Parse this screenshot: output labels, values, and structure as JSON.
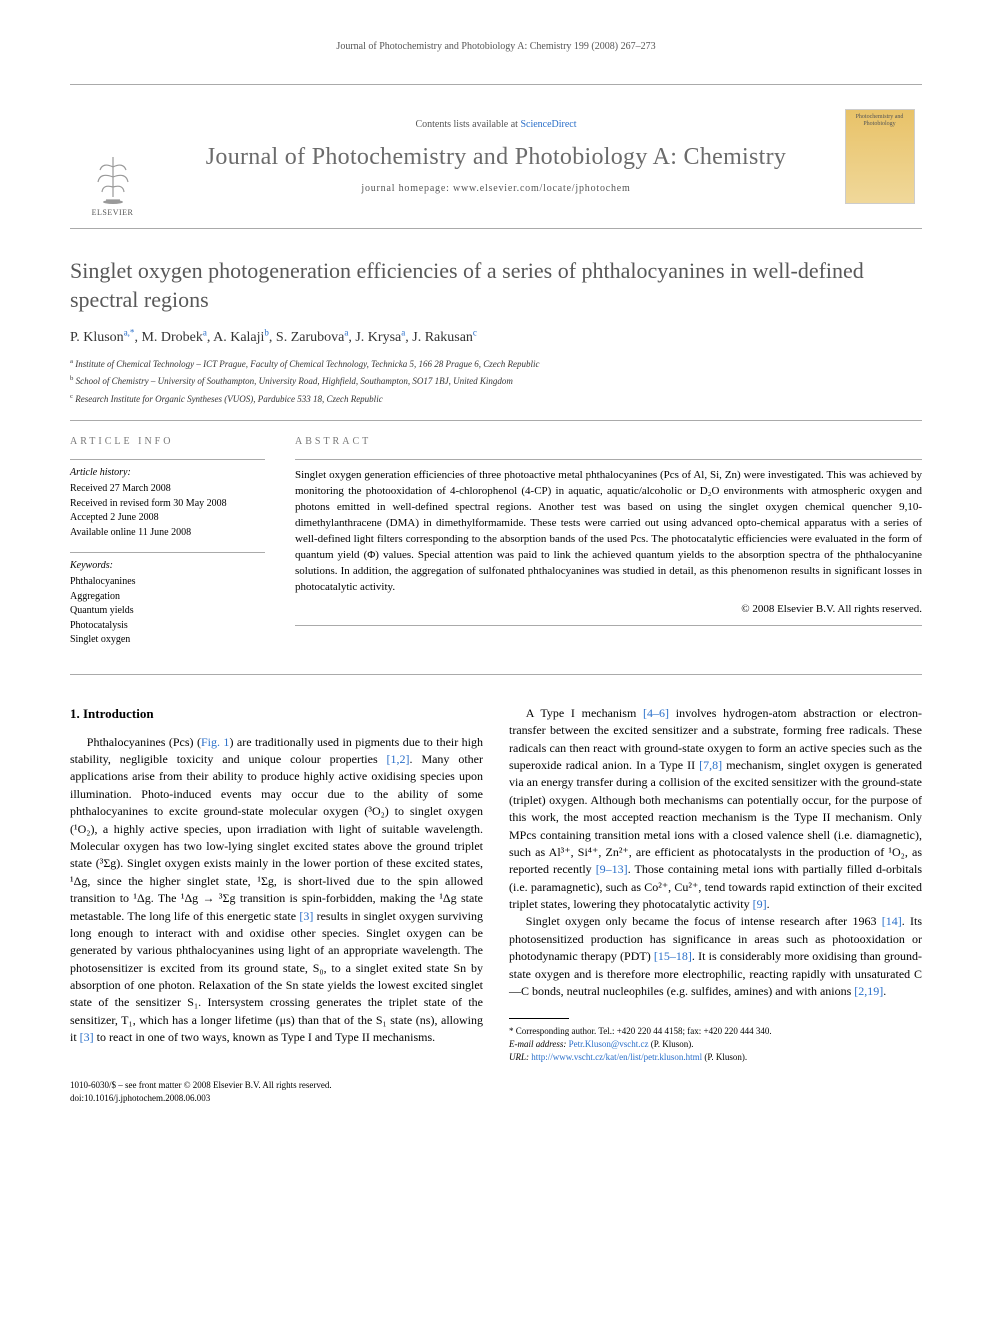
{
  "running_head": "Journal of Photochemistry and Photobiology A: Chemistry 199 (2008) 267–273",
  "masthead": {
    "contents_prefix": "Contents lists available at ",
    "contents_link": "ScienceDirect",
    "journal_title": "Journal of Photochemistry and Photobiology A: Chemistry",
    "homepage_prefix": "journal homepage: ",
    "homepage": "www.elsevier.com/locate/jphotochem",
    "publisher": "ELSEVIER",
    "cover_text": "Photochemistry and Photobiology"
  },
  "article": {
    "title": "Singlet oxygen photogeneration efficiencies of a series of phthalocyanines in well-defined spectral regions",
    "authors_html": "P. Kluson<sup>a,*</sup>, M. Drobek<sup>a</sup>, A. Kalaji<sup>b</sup>, S. Zarubova<sup>a</sup>, J. Krysa<sup>a</sup>, J. Rakusan<sup>c</sup>",
    "affiliations": [
      "a Institute of Chemical Technology – ICT Prague, Faculty of Chemical Technology, Technicka 5, 166 28 Prague 6, Czech Republic",
      "b School of Chemistry – University of Southampton, University Road, Highfield, Southampton, SO17 1BJ, United Kingdom",
      "c Research Institute for Organic Syntheses (VUOS), Pardubice 533 18, Czech Republic"
    ]
  },
  "info": {
    "label": "ARTICLE INFO",
    "history_hdr": "Article history:",
    "history": [
      "Received 27 March 2008",
      "Received in revised form 30 May 2008",
      "Accepted 2 June 2008",
      "Available online 11 June 2008"
    ],
    "keywords_hdr": "Keywords:",
    "keywords": [
      "Phthalocyanines",
      "Aggregation",
      "Quantum yields",
      "Photocatalysis",
      "Singlet oxygen"
    ]
  },
  "abstract": {
    "label": "ABSTRACT",
    "text": "Singlet oxygen generation efficiencies of three photoactive metal phthalocyanines (Pcs of Al, Si, Zn) were investigated. This was achieved by monitoring the photooxidation of 4-chlorophenol (4-CP) in aquatic, aquatic/alcoholic or D₂O environments with atmospheric oxygen and photons emitted in well-defined spectral regions. Another test was based on using the singlet oxygen chemical quencher 9,10-dimethylanthracene (DMA) in dimethylformamide. These tests were carried out using advanced opto-chemical apparatus with a series of well-defined light filters corresponding to the absorption bands of the used Pcs. The photocatalytic efficiencies were evaluated in the form of quantum yield (Φ) values. Special attention was paid to link the achieved quantum yields to the absorption spectra of the phthalocyanine solutions. In addition, the aggregation of sulfonated phthalocyanines was studied in detail, as this phenomenon results in significant losses in photocatalytic activity.",
    "copyright": "© 2008 Elsevier B.V. All rights reserved."
  },
  "body": {
    "h_intro": "1.  Introduction",
    "p1": "Phthalocyanines (Pcs) (Fig. 1) are traditionally used in pigments due to their high stability, negligible toxicity and unique colour properties [1,2]. Many other applications arise from their ability to produce highly active oxidising species upon illumination. Photo-induced events may occur due to the ability of some phthalocyanines to excite ground-state molecular oxygen (³O₂) to singlet oxygen (¹O₂), a highly active species, upon irradiation with light of suitable wavelength. Molecular oxygen has two low-lying singlet excited states above the ground triplet state (³Σg). Singlet oxygen exists mainly in the lower portion of these excited states, ¹Δg, since the higher singlet state, ¹Σg, is short-lived due to the spin allowed transition to ¹Δg. The ¹Δg → ³Σg transition is spin-forbidden, making the ¹Δg state metastable. The long life of this energetic state [3] results in singlet oxygen surviving long enough to interact with and oxidise other species. Singlet oxygen can be generated by various phthalocyanines using light of an appropriate wavelength. The photosensitizer is excited from its ground state, S₀, to a singlet exited state Sn by absorption of one photon. Relaxation of the Sn state yields the lowest excited singlet state of the sensitizer S₁. Intersystem crossing generates the triplet state of the sensitizer, T₁, which has a longer lifetime (μs) than that of the S₁ state (ns), allowing it [3] to react in one of two ways, known as Type I and Type II mechanisms.",
    "p2": "A Type I mechanism [4–6] involves hydrogen-atom abstraction or electron-transfer between the excited sensitizer and a substrate, forming free radicals. These radicals can then react with ground-state oxygen to form an active species such as the superoxide radical anion. In a Type II [7,8] mechanism, singlet oxygen is generated via an energy transfer during a collision of the excited sensitizer with the ground-state (triplet) oxygen. Although both mechanisms can potentially occur, for the purpose of this work, the most accepted reaction mechanism is the Type II mechanism. Only MPcs containing transition metal ions with a closed valence shell (i.e. diamagnetic), such as Al³⁺, Si⁴⁺, Zn²⁺, are efficient as photocatalysts in the production of ¹O₂, as reported recently [9–13]. Those containing metal ions with partially filled d-orbitals (i.e. paramagnetic), such as Co²⁺, Cu²⁺, tend towards rapid extinction of their excited triplet states, lowering they photocatalytic activity [9].",
    "p3": "Singlet oxygen only became the focus of intense research after 1963 [14]. Its photosensitized production has significance in areas such as photooxidation or photodynamic therapy (PDT) [15–18]. It is considerably more oxidising than ground-state oxygen and is therefore more electrophilic, reacting rapidly with unsaturated C—C bonds, neutral nucleophiles (e.g. sulfides, amines) and with anions [2,19]."
  },
  "footnotes": {
    "corr": "* Corresponding author. Tel.: +420 220 44 4158; fax: +420 220 444 340.",
    "email_lbl": "E-mail address: ",
    "email": "Petr.Kluson@vscht.cz",
    "email_who": " (P. Kluson).",
    "url_lbl": "URL: ",
    "url": "http://www.vscht.cz/kat/en/list/petr.kluson.html",
    "url_who": " (P. Kluson)."
  },
  "bottom": {
    "line1": "1010-6030/$ – see front matter © 2008 Elsevier B.V. All rights reserved.",
    "line2": "doi:10.1016/j.jphotochem.2008.06.003"
  },
  "colors": {
    "link": "#2a6fc9",
    "grey_text": "#585858",
    "rule": "#aaaaaa"
  }
}
